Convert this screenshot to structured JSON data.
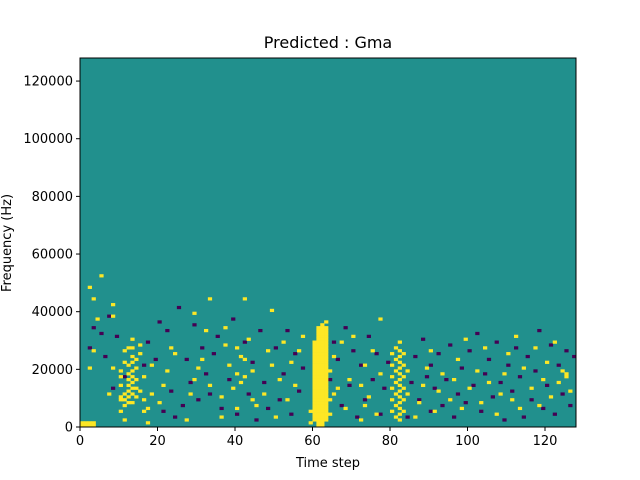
{
  "chart_data": {
    "type": "heatmap",
    "title": "Predicted : Gma",
    "xlabel": "Time step",
    "ylabel": "Frequency (Hz)",
    "xlim": [
      0,
      128
    ],
    "ylim": [
      0,
      128000
    ],
    "x_ticks": [
      0,
      20,
      40,
      60,
      80,
      100,
      120
    ],
    "y_ticks": [
      0,
      20000,
      40000,
      60000,
      80000,
      100000,
      120000
    ],
    "x_tick_labels": [
      "0",
      "20",
      "40",
      "60",
      "80",
      "100",
      "120"
    ],
    "y_tick_labels": [
      "0",
      "20000",
      "40000",
      "60000",
      "80000",
      "100000",
      "120000"
    ],
    "grid": false,
    "levels": {
      "low": 0,
      "mid": 1,
      "high": 2
    },
    "colors": {
      "low": "#440154",
      "mid": "#21908d",
      "high": "#fde725"
    },
    "background_level": 1,
    "high_cells": [
      [
        0,
        0
      ],
      [
        0,
        1
      ],
      [
        1,
        0
      ],
      [
        1,
        1
      ],
      [
        2,
        0
      ],
      [
        2,
        1
      ],
      [
        3,
        0
      ],
      [
        3,
        1
      ],
      [
        2,
        20
      ],
      [
        3,
        26
      ],
      [
        4,
        37
      ],
      [
        3,
        44
      ],
      [
        2,
        48
      ],
      [
        5,
        52
      ],
      [
        7,
        11
      ],
      [
        8,
        20
      ],
      [
        8,
        38
      ],
      [
        8,
        42
      ],
      [
        10,
        5
      ],
      [
        10,
        9
      ],
      [
        10,
        10
      ],
      [
        10,
        14
      ],
      [
        10,
        17
      ],
      [
        10,
        19
      ],
      [
        11,
        2
      ],
      [
        11,
        7
      ],
      [
        11,
        9
      ],
      [
        11,
        11
      ],
      [
        11,
        22
      ],
      [
        11,
        26
      ],
      [
        12,
        8
      ],
      [
        12,
        10
      ],
      [
        12,
        12
      ],
      [
        12,
        14
      ],
      [
        12,
        16
      ],
      [
        12,
        18
      ],
      [
        12,
        21
      ],
      [
        12,
        27
      ],
      [
        13,
        8
      ],
      [
        13,
        11
      ],
      [
        13,
        13
      ],
      [
        13,
        15
      ],
      [
        13,
        17
      ],
      [
        13,
        19
      ],
      [
        13,
        22
      ],
      [
        13,
        24
      ],
      [
        13,
        27
      ],
      [
        13,
        30
      ],
      [
        14,
        10
      ],
      [
        14,
        13
      ],
      [
        14,
        16
      ],
      [
        14,
        20
      ],
      [
        14,
        23
      ],
      [
        15,
        12
      ],
      [
        15,
        25
      ],
      [
        15,
        28
      ],
      [
        16,
        5
      ],
      [
        16,
        9
      ],
      [
        16,
        17
      ],
      [
        18,
        11
      ],
      [
        18,
        21
      ],
      [
        17,
        1
      ],
      [
        17,
        6
      ],
      [
        20,
        8
      ],
      [
        21,
        14
      ],
      [
        22,
        19
      ],
      [
        23,
        27
      ],
      [
        24,
        25
      ],
      [
        27,
        2
      ],
      [
        28,
        11
      ],
      [
        29,
        16
      ],
      [
        29,
        39
      ],
      [
        30,
        20
      ],
      [
        31,
        23
      ],
      [
        32,
        33
      ],
      [
        33,
        14
      ],
      [
        33,
        44
      ],
      [
        36,
        3
      ],
      [
        36,
        10
      ],
      [
        37,
        28
      ],
      [
        37,
        34
      ],
      [
        38,
        21
      ],
      [
        39,
        13
      ],
      [
        40,
        6
      ],
      [
        40,
        18
      ],
      [
        40,
        27
      ],
      [
        41,
        15
      ],
      [
        41,
        24
      ],
      [
        42,
        17
      ],
      [
        42,
        23
      ],
      [
        42,
        44
      ],
      [
        43,
        30
      ],
      [
        44,
        9
      ],
      [
        44,
        19
      ],
      [
        45,
        7
      ],
      [
        47,
        11
      ],
      [
        48,
        26
      ],
      [
        49,
        21
      ],
      [
        49,
        40
      ],
      [
        50,
        3
      ],
      [
        51,
        16
      ],
      [
        52,
        29
      ],
      [
        53,
        9
      ],
      [
        54,
        22
      ],
      [
        55,
        14
      ],
      [
        56,
        26
      ],
      [
        57,
        31
      ],
      [
        59,
        5
      ],
      [
        59,
        1
      ],
      [
        60,
        2
      ],
      [
        60,
        3
      ],
      [
        60,
        4
      ],
      [
        60,
        5
      ],
      [
        60,
        6
      ],
      [
        60,
        7
      ],
      [
        60,
        8
      ],
      [
        60,
        9
      ],
      [
        60,
        10
      ],
      [
        60,
        11
      ],
      [
        60,
        12
      ],
      [
        60,
        13
      ],
      [
        60,
        14
      ],
      [
        60,
        15
      ],
      [
        60,
        16
      ],
      [
        60,
        17
      ],
      [
        60,
        18
      ],
      [
        60,
        19
      ],
      [
        60,
        20
      ],
      [
        60,
        21
      ],
      [
        60,
        22
      ],
      [
        60,
        23
      ],
      [
        60,
        24
      ],
      [
        60,
        25
      ],
      [
        60,
        26
      ],
      [
        60,
        27
      ],
      [
        60,
        28
      ],
      [
        60,
        29
      ],
      [
        61,
        0
      ],
      [
        61,
        1
      ],
      [
        61,
        2
      ],
      [
        61,
        3
      ],
      [
        61,
        4
      ],
      [
        61,
        5
      ],
      [
        61,
        6
      ],
      [
        61,
        7
      ],
      [
        61,
        8
      ],
      [
        61,
        9
      ],
      [
        61,
        10
      ],
      [
        61,
        11
      ],
      [
        61,
        12
      ],
      [
        61,
        13
      ],
      [
        61,
        14
      ],
      [
        61,
        15
      ],
      [
        61,
        16
      ],
      [
        61,
        17
      ],
      [
        61,
        18
      ],
      [
        61,
        19
      ],
      [
        61,
        20
      ],
      [
        61,
        21
      ],
      [
        61,
        22
      ],
      [
        61,
        23
      ],
      [
        61,
        24
      ],
      [
        61,
        25
      ],
      [
        61,
        26
      ],
      [
        61,
        27
      ],
      [
        61,
        28
      ],
      [
        61,
        29
      ],
      [
        61,
        30
      ],
      [
        61,
        31
      ],
      [
        61,
        32
      ],
      [
        61,
        33
      ],
      [
        61,
        34
      ],
      [
        62,
        0
      ],
      [
        62,
        1
      ],
      [
        62,
        2
      ],
      [
        62,
        3
      ],
      [
        62,
        4
      ],
      [
        62,
        5
      ],
      [
        62,
        6
      ],
      [
        62,
        7
      ],
      [
        62,
        8
      ],
      [
        62,
        9
      ],
      [
        62,
        10
      ],
      [
        62,
        11
      ],
      [
        62,
        12
      ],
      [
        62,
        13
      ],
      [
        62,
        14
      ],
      [
        62,
        15
      ],
      [
        62,
        16
      ],
      [
        62,
        17
      ],
      [
        62,
        18
      ],
      [
        62,
        19
      ],
      [
        62,
        20
      ],
      [
        62,
        21
      ],
      [
        62,
        22
      ],
      [
        62,
        23
      ],
      [
        62,
        24
      ],
      [
        62,
        25
      ],
      [
        62,
        26
      ],
      [
        62,
        27
      ],
      [
        62,
        28
      ],
      [
        62,
        29
      ],
      [
        62,
        30
      ],
      [
        62,
        31
      ],
      [
        62,
        32
      ],
      [
        62,
        33
      ],
      [
        62,
        34
      ],
      [
        62,
        35
      ],
      [
        63,
        2
      ],
      [
        63,
        3
      ],
      [
        63,
        4
      ],
      [
        63,
        5
      ],
      [
        63,
        6
      ],
      [
        63,
        7
      ],
      [
        63,
        8
      ],
      [
        63,
        9
      ],
      [
        63,
        10
      ],
      [
        63,
        11
      ],
      [
        63,
        12
      ],
      [
        63,
        13
      ],
      [
        63,
        14
      ],
      [
        63,
        15
      ],
      [
        63,
        16
      ],
      [
        63,
        17
      ],
      [
        63,
        18
      ],
      [
        63,
        19
      ],
      [
        63,
        20
      ],
      [
        63,
        21
      ],
      [
        63,
        22
      ],
      [
        63,
        23
      ],
      [
        63,
        24
      ],
      [
        63,
        25
      ],
      [
        63,
        26
      ],
      [
        63,
        27
      ],
      [
        63,
        28
      ],
      [
        63,
        29
      ],
      [
        63,
        30
      ],
      [
        63,
        31
      ],
      [
        63,
        32
      ],
      [
        63,
        33
      ],
      [
        63,
        34
      ],
      [
        63,
        36
      ],
      [
        64,
        4
      ],
      [
        64,
        9
      ],
      [
        64,
        19
      ],
      [
        65,
        11
      ],
      [
        65,
        24
      ],
      [
        66,
        13
      ],
      [
        67,
        29
      ],
      [
        68,
        6
      ],
      [
        69,
        16
      ],
      [
        70,
        31
      ],
      [
        72,
        2
      ],
      [
        72,
        14
      ],
      [
        73,
        7
      ],
      [
        73,
        21
      ],
      [
        74,
        10
      ],
      [
        75,
        26
      ],
      [
        76,
        4
      ],
      [
        77,
        18
      ],
      [
        77,
        37
      ],
      [
        80,
        5
      ],
      [
        80,
        9
      ],
      [
        80,
        13
      ],
      [
        80,
        17
      ],
      [
        80,
        21
      ],
      [
        80,
        25
      ],
      [
        81,
        3
      ],
      [
        81,
        7
      ],
      [
        81,
        11
      ],
      [
        81,
        15
      ],
      [
        81,
        19
      ],
      [
        81,
        23
      ],
      [
        81,
        27
      ],
      [
        82,
        2
      ],
      [
        82,
        4
      ],
      [
        82,
        6
      ],
      [
        82,
        8
      ],
      [
        82,
        10
      ],
      [
        82,
        12
      ],
      [
        82,
        14
      ],
      [
        82,
        16
      ],
      [
        82,
        18
      ],
      [
        82,
        20
      ],
      [
        82,
        22
      ],
      [
        82,
        24
      ],
      [
        82,
        26
      ],
      [
        82,
        29
      ],
      [
        83,
        5
      ],
      [
        83,
        9
      ],
      [
        83,
        13
      ],
      [
        83,
        17
      ],
      [
        83,
        21
      ],
      [
        83,
        25
      ],
      [
        84,
        11
      ],
      [
        84,
        19
      ],
      [
        86,
        3
      ],
      [
        87,
        8
      ],
      [
        88,
        14
      ],
      [
        89,
        20
      ],
      [
        90,
        26
      ],
      [
        91,
        5
      ],
      [
        92,
        12
      ],
      [
        93,
        18
      ],
      [
        95,
        9
      ],
      [
        96,
        16
      ],
      [
        97,
        23
      ],
      [
        98,
        6
      ],
      [
        99,
        30
      ],
      [
        100,
        13
      ],
      [
        102,
        19
      ],
      [
        103,
        8
      ],
      [
        104,
        27
      ],
      [
        105,
        15
      ],
      [
        107,
        4
      ],
      [
        108,
        11
      ],
      [
        109,
        18
      ],
      [
        110,
        25
      ],
      [
        111,
        9
      ],
      [
        112,
        31
      ],
      [
        113,
        6
      ],
      [
        114,
        20
      ],
      [
        116,
        13
      ],
      [
        117,
        27
      ],
      [
        118,
        7
      ],
      [
        119,
        16
      ],
      [
        120,
        22
      ],
      [
        121,
        10
      ],
      [
        122,
        29
      ],
      [
        123,
        15
      ],
      [
        124,
        19
      ],
      [
        125,
        18
      ],
      [
        125,
        17
      ],
      [
        126,
        12
      ]
    ],
    "low_cells": [
      [
        2,
        27
      ],
      [
        3,
        34
      ],
      [
        5,
        32
      ],
      [
        6,
        24
      ],
      [
        7,
        38
      ],
      [
        8,
        13
      ],
      [
        9,
        31
      ],
      [
        11,
        17
      ],
      [
        16,
        21
      ],
      [
        17,
        29
      ],
      [
        19,
        23
      ],
      [
        20,
        36
      ],
      [
        21,
        5
      ],
      [
        22,
        33
      ],
      [
        23,
        12
      ],
      [
        24,
        3
      ],
      [
        25,
        41
      ],
      [
        26,
        7
      ],
      [
        27,
        23
      ],
      [
        28,
        15
      ],
      [
        29,
        35
      ],
      [
        30,
        9
      ],
      [
        31,
        27
      ],
      [
        32,
        18
      ],
      [
        33,
        11
      ],
      [
        34,
        25
      ],
      [
        35,
        31
      ],
      [
        36,
        6
      ],
      [
        38,
        16
      ],
      [
        39,
        37
      ],
      [
        40,
        4
      ],
      [
        42,
        29
      ],
      [
        43,
        11
      ],
      [
        44,
        22
      ],
      [
        45,
        2
      ],
      [
        46,
        33
      ],
      [
        47,
        15
      ],
      [
        48,
        6
      ],
      [
        50,
        27
      ],
      [
        51,
        9
      ],
      [
        52,
        18
      ],
      [
        53,
        33
      ],
      [
        54,
        4
      ],
      [
        55,
        25
      ],
      [
        56,
        12
      ],
      [
        57,
        20
      ],
      [
        64,
        16
      ],
      [
        65,
        29
      ],
      [
        66,
        23
      ],
      [
        67,
        7
      ],
      [
        68,
        34
      ],
      [
        69,
        14
      ],
      [
        70,
        26
      ],
      [
        71,
        3
      ],
      [
        72,
        21
      ],
      [
        73,
        9
      ],
      [
        74,
        31
      ],
      [
        75,
        16
      ],
      [
        76,
        25
      ],
      [
        77,
        4
      ],
      [
        78,
        13
      ],
      [
        79,
        22
      ],
      [
        84,
        3
      ],
      [
        85,
        15
      ],
      [
        86,
        24
      ],
      [
        87,
        9
      ],
      [
        88,
        30
      ],
      [
        89,
        17
      ],
      [
        90,
        5
      ],
      [
        90,
        21
      ],
      [
        91,
        13
      ],
      [
        92,
        25
      ],
      [
        93,
        7
      ],
      [
        94,
        16
      ],
      [
        95,
        28
      ],
      [
        96,
        3
      ],
      [
        97,
        11
      ],
      [
        98,
        20
      ],
      [
        99,
        8
      ],
      [
        100,
        26
      ],
      [
        101,
        14
      ],
      [
        102,
        32
      ],
      [
        103,
        5
      ],
      [
        104,
        18
      ],
      [
        105,
        23
      ],
      [
        106,
        10
      ],
      [
        107,
        29
      ],
      [
        108,
        15
      ],
      [
        109,
        2
      ],
      [
        110,
        21
      ],
      [
        111,
        12
      ],
      [
        112,
        27
      ],
      [
        113,
        17
      ],
      [
        114,
        3
      ],
      [
        115,
        24
      ],
      [
        116,
        9
      ],
      [
        117,
        19
      ],
      [
        118,
        33
      ],
      [
        119,
        6
      ],
      [
        120,
        14
      ],
      [
        121,
        28
      ],
      [
        122,
        4
      ],
      [
        123,
        21
      ],
      [
        124,
        11
      ],
      [
        125,
        26
      ],
      [
        126,
        7
      ],
      [
        127,
        24
      ]
    ]
  }
}
